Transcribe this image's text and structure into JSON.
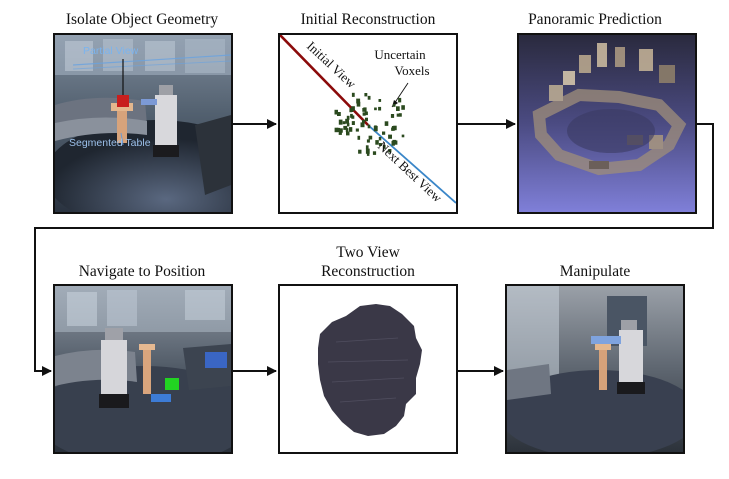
{
  "panels": [
    {
      "title": "Isolate Object Geometry"
    },
    {
      "title": "Initial Reconstruction"
    },
    {
      "title": "Panoramic Prediction"
    },
    {
      "title": "Navigate to Position"
    },
    {
      "title_line1": "Two View",
      "title_line2": "Reconstruction"
    },
    {
      "title": "Manipulate"
    }
  ],
  "panel1": {
    "partial_view_label": "Partial View",
    "segmented_table_label": "Segmented Table"
  },
  "panel2": {
    "initial_view_label": "Initial View",
    "next_best_view_label": "Next Best View",
    "uncertain_line1": "Uncertain",
    "uncertain_line2": "Voxels"
  },
  "colors": {
    "initial_view_line": "#8b0a0a",
    "next_best_view_line": "#3a86c8",
    "voxel": "#2b4a1f",
    "reconstruction_blob": "#3a3847",
    "panorama_bg": "#7f7fd8"
  }
}
